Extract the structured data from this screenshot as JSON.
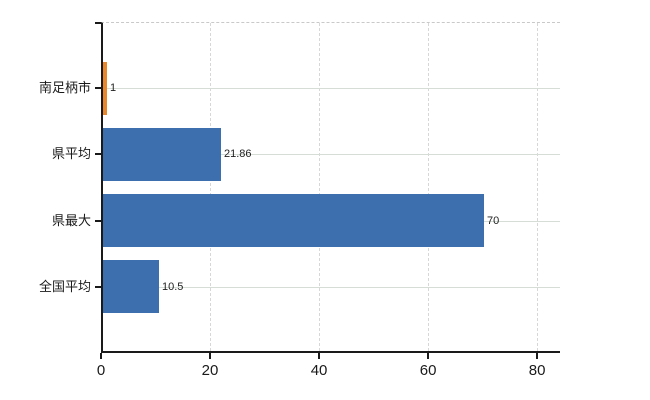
{
  "chart_data": {
    "type": "bar",
    "orientation": "horizontal",
    "title": "",
    "xlabel": "",
    "ylabel": "",
    "categories": [
      "南足柄市",
      "県平均",
      "県最大",
      "全国平均"
    ],
    "values": [
      1,
      21.86,
      70,
      10.5
    ],
    "value_labels": [
      "1",
      "21.86",
      "70",
      "10.5"
    ],
    "bar_colors": [
      "#E8872B",
      "#3D6EAD",
      "#3D6EAD",
      "#3D6EAD"
    ],
    "x_ticks": [
      0,
      20,
      40,
      60,
      80
    ],
    "x_tick_labels": [
      "0",
      "20",
      "40",
      "60",
      "80"
    ],
    "xlim": [
      0,
      84.2
    ],
    "grid": true,
    "legend": false
  },
  "colors": {
    "bar_blue": "#3D6EAD",
    "bar_orange": "#E8872B",
    "axis": "#1a1a1a",
    "h_gridline": "#d6dcd6",
    "v_gridline": "#d7d7d7",
    "top_border": "#c9c9c9",
    "background": "#ffffff"
  }
}
